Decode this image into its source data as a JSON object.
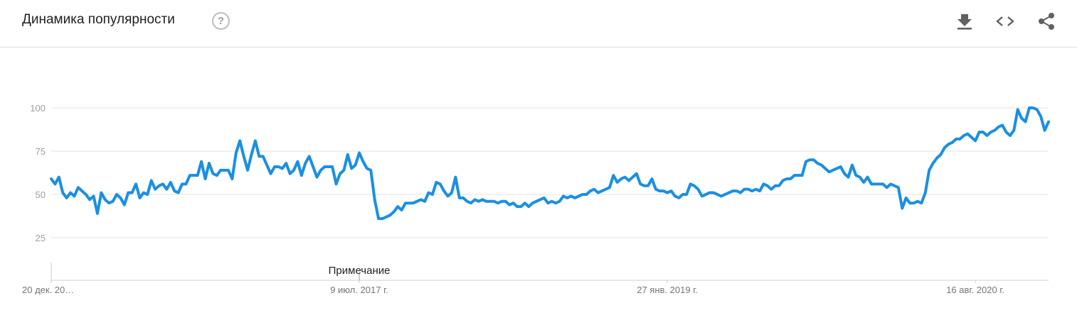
{
  "header": {
    "title": "Динамика популярности",
    "help_icon": "help-circle-icon",
    "help_glyph": "?",
    "actions": [
      {
        "name": "download-icon"
      },
      {
        "name": "embed-code-icon"
      },
      {
        "name": "share-icon"
      }
    ]
  },
  "colors": {
    "line": "#1a8fe3",
    "grid": "#e0e0e0",
    "axis": "#cccccc"
  },
  "chart_data": {
    "type": "line",
    "title": "",
    "xlabel": "",
    "ylabel": "",
    "ylim": [
      0,
      100
    ],
    "y_ticks": [
      100,
      75,
      50,
      25
    ],
    "x_tick_labels": [
      "20 дек. 20…",
      "9 июл. 2017 г.",
      "27 янв. 2019 г.",
      "16 авг. 2020 г."
    ],
    "x_tick_index": [
      0,
      80,
      160,
      240
    ],
    "annotation": {
      "label": "Примечание",
      "index": 80
    },
    "grid": true,
    "legend": "none",
    "series": [
      {
        "values": [
          59,
          56,
          60,
          51,
          48,
          51,
          49,
          54,
          52,
          50,
          47,
          49,
          39,
          51,
          47,
          45,
          46,
          50,
          48,
          44,
          51,
          51,
          56,
          48,
          51,
          50,
          58,
          53,
          55,
          56,
          53,
          57,
          52,
          51,
          56,
          56,
          61,
          61,
          61,
          69,
          59,
          68,
          62,
          61,
          64,
          64,
          64,
          59,
          74,
          81,
          72,
          64,
          73,
          81,
          72,
          72,
          67,
          62,
          66,
          66,
          65,
          68,
          62,
          64,
          69,
          61,
          68,
          72,
          66,
          60,
          64,
          66,
          66,
          66,
          56,
          62,
          64,
          73,
          65,
          67,
          74,
          69,
          65,
          64,
          47,
          36,
          36,
          37,
          38,
          40,
          43,
          41,
          45,
          45,
          45,
          46,
          47,
          46,
          51,
          50,
          57,
          56,
          52,
          49,
          51,
          60,
          48,
          48,
          46,
          45,
          47,
          46,
          47,
          46,
          46,
          46,
          45,
          46,
          46,
          44,
          45,
          43,
          43,
          45,
          43,
          45,
          46,
          47,
          48,
          45,
          46,
          45,
          46,
          49,
          48,
          49,
          48,
          49,
          50,
          50,
          52,
          53,
          51,
          52,
          53,
          54,
          61,
          57,
          59,
          60,
          58,
          60,
          62,
          56,
          55,
          55,
          59,
          53,
          52,
          52,
          51,
          52,
          49,
          48,
          50,
          50,
          56,
          55,
          53,
          49,
          50,
          51,
          51,
          50,
          49,
          50,
          51,
          52,
          52,
          51,
          53,
          53,
          52,
          53,
          52,
          56,
          55,
          53,
          55,
          55,
          58,
          59,
          59,
          61,
          61,
          61,
          69,
          70,
          70,
          68,
          67,
          65,
          63,
          64,
          65,
          66,
          62,
          60,
          67,
          61,
          60,
          57,
          60,
          56,
          56,
          56,
          56,
          54,
          56,
          55,
          54,
          42,
          48,
          45,
          45,
          46,
          45,
          51,
          64,
          68,
          71,
          73,
          77,
          79,
          80,
          82,
          82,
          84,
          85,
          83,
          81,
          86,
          86,
          84,
          86,
          87,
          89,
          90,
          86,
          84,
          87,
          99,
          94,
          92,
          100,
          100,
          99,
          95,
          87,
          92
        ]
      }
    ]
  }
}
